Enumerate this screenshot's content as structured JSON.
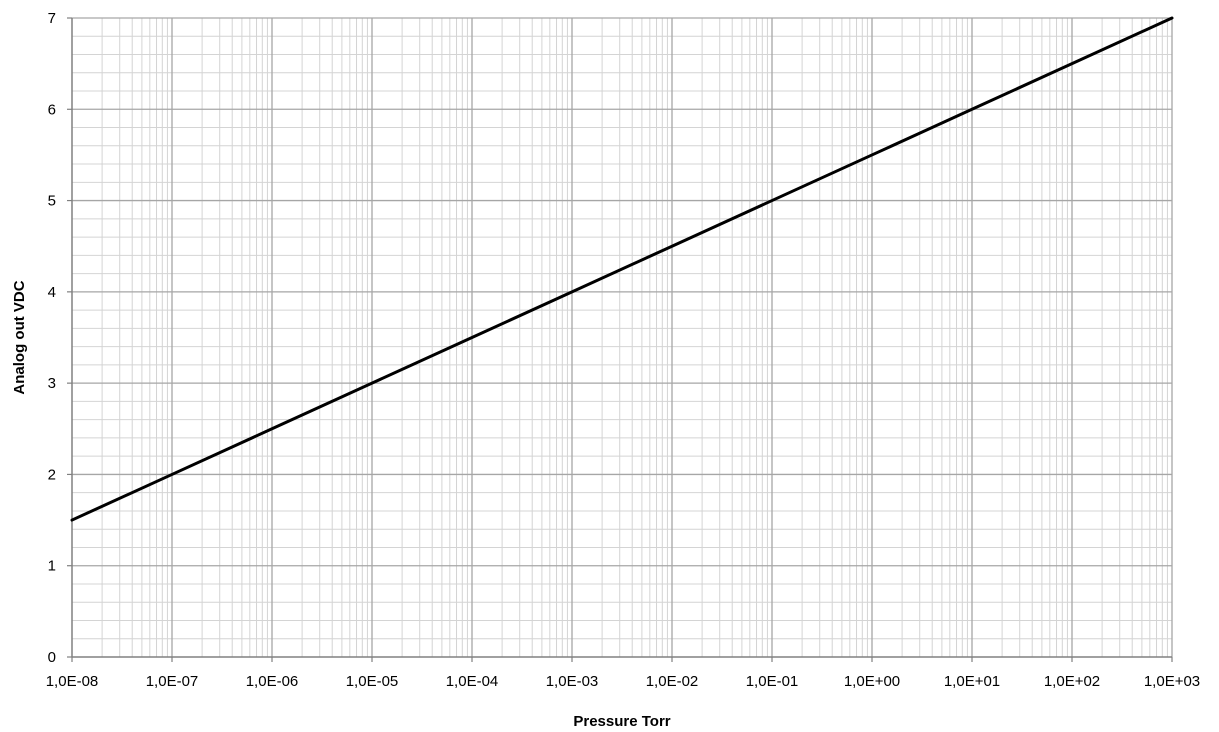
{
  "chart_data": {
    "type": "line",
    "title": "",
    "xlabel": "Pressure Torr",
    "ylabel": "Analog out VDC",
    "x_scale": "log",
    "xlim": [
      1e-08,
      1000
    ],
    "ylim": [
      0,
      7
    ],
    "x_tick_values": [
      1e-08,
      1e-07,
      1e-06,
      1e-05,
      0.0001,
      0.001,
      0.01,
      0.1,
      1,
      10,
      100,
      1000
    ],
    "x_tick_labels": [
      "1,0E-08",
      "1,0E-07",
      "1,0E-06",
      "1,0E-05",
      "1,0E-04",
      "1,0E-03",
      "1,0E-02",
      "1,0E-01",
      "1,0E+00",
      "1,0E+01",
      "1,0E+02",
      "1,0E+03"
    ],
    "y_tick_values": [
      0,
      1,
      2,
      3,
      4,
      5,
      6,
      7
    ],
    "y_tick_labels": [
      "0",
      "1",
      "2",
      "3",
      "4",
      "5",
      "6",
      "7"
    ],
    "grid": true,
    "minor_grid": true,
    "legend": "none",
    "series": [
      {
        "x": [
          1e-08,
          1e-07,
          1e-06,
          1e-05,
          0.0001,
          0.001,
          0.01,
          0.1,
          1,
          10,
          100,
          1000
        ],
        "y": [
          1.5,
          2.0,
          2.5,
          3.0,
          3.5,
          4.0,
          4.5,
          5.0,
          5.5,
          6.0,
          6.5,
          7.0
        ],
        "color": "#000000"
      }
    ],
    "colors": {
      "major_grid": "#a6a6a6",
      "minor_grid": "#d4d4d4",
      "line": "#000000"
    }
  }
}
